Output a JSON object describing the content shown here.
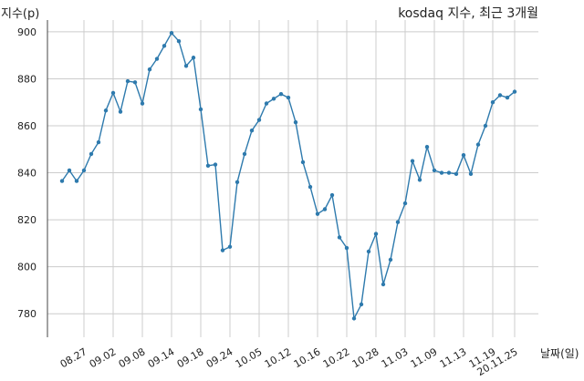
{
  "chart_data": {
    "type": "line",
    "title": "kosdaq 지수, 최근 3개월",
    "ylabel": "지수(p)",
    "xlabel": "날짜(일)",
    "ylim": [
      770,
      905
    ],
    "yticks": [
      780,
      800,
      820,
      840,
      860,
      880,
      900
    ],
    "grid": true,
    "xtick_labels": [
      "08.27",
      "09.02",
      "09.08",
      "09.14",
      "09.18",
      "09.24",
      "10.05",
      "10.12",
      "10.16",
      "10.22",
      "10.28",
      "11.03",
      "11.09",
      "11.13",
      "11.19",
      "20.11.25"
    ],
    "xtick_positions": [
      3,
      7,
      11,
      15,
      19,
      23,
      27,
      31,
      35,
      39,
      43,
      47,
      51,
      55,
      59,
      62
    ],
    "series": [
      {
        "color": "#2e7aad",
        "values": [
          836.5,
          841,
          836.5,
          841,
          848,
          853,
          866.5,
          874,
          866,
          879,
          878.5,
          869.5,
          884,
          888.5,
          894,
          899.5,
          896,
          885.5,
          889,
          867,
          843,
          843.5,
          807,
          808.5,
          836,
          848,
          858,
          862.5,
          869.5,
          871.5,
          873.5,
          872,
          861.5,
          844.5,
          834,
          822.5,
          824.5,
          830.5,
          812.5,
          808,
          778,
          784,
          806.5,
          814,
          792.5,
          803,
          819,
          827,
          845,
          837,
          851,
          841,
          840,
          840,
          839.5,
          847.5,
          839.5,
          852,
          860,
          870,
          873,
          872,
          874.5
        ]
      }
    ]
  }
}
